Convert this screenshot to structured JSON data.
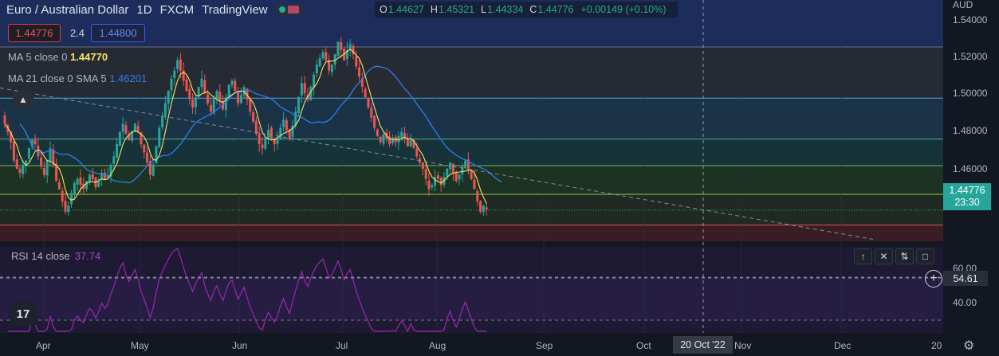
{
  "header": {
    "symbol": "Euro / Australian Dollar",
    "interval": "1D",
    "exchange": "FXCM",
    "source": "TradingView"
  },
  "ohlc": {
    "o_label": "O",
    "o": "1.44627",
    "h_label": "H",
    "h": "1.45321",
    "l_label": "L",
    "l": "1.44334",
    "c_label": "C",
    "c": "1.44776",
    "change": "+0.00149 (+0.10%)"
  },
  "trade": {
    "sell": "1.44776",
    "spread": "2.4",
    "buy": "1.44800"
  },
  "indicators": {
    "ma5_label": "MA 5 close 0",
    "ma5_value": "1.44770",
    "ma21_label": "MA 21 close 0 SMA 5",
    "ma21_value": "1.46201"
  },
  "rsi": {
    "label": "RSI 14 close",
    "value": "37.74",
    "current_tag": "54.61",
    "ticks": [
      "60.00",
      "40.00"
    ]
  },
  "axis": {
    "currency": "AUD",
    "ticks": [
      "1.54000",
      "1.52000",
      "1.50000",
      "1.48000",
      "1.46000"
    ],
    "current_price": "1.44776",
    "countdown": "23:30"
  },
  "xaxis": {
    "months": [
      "Apr",
      "May",
      "Jun",
      "Jul",
      "Aug",
      "Sep",
      "Oct",
      "Nov",
      "Dec",
      "20"
    ],
    "crosshair_date": "20 Oct '22"
  },
  "colors": {
    "up": "#26a69a",
    "down": "#ef5350",
    "ma5": "#f7e463",
    "ma21": "#2f7bf0",
    "rsi": "#9c27b0"
  },
  "chart_data": {
    "type": "candlestick",
    "y_range": [
      1.4325,
      1.5505
    ],
    "x_range": [
      "2022-03-21",
      "2022-12-20"
    ],
    "closes": [
      1.49,
      1.486,
      1.481,
      1.472,
      1.468,
      1.466,
      1.47,
      1.472,
      1.478,
      1.482,
      1.48,
      1.474,
      1.469,
      1.465,
      1.472,
      1.478,
      1.47,
      1.462,
      1.458,
      1.452,
      1.447,
      1.45,
      1.456,
      1.461,
      1.463,
      1.46,
      1.458,
      1.462,
      1.465,
      1.463,
      1.459,
      1.462,
      1.466,
      1.463,
      1.465,
      1.47,
      1.474,
      1.48,
      1.486,
      1.49,
      1.485,
      1.482,
      1.486,
      1.49,
      1.486,
      1.48,
      1.476,
      1.471,
      1.465,
      1.47,
      1.479,
      1.488,
      1.494,
      1.5,
      1.506,
      1.512,
      1.516,
      1.521,
      1.516,
      1.511,
      1.506,
      1.502,
      1.498,
      1.503,
      1.508,
      1.512,
      1.505,
      1.5,
      1.496,
      1.502,
      1.506,
      1.501,
      1.497,
      1.503,
      1.509,
      1.511,
      1.506,
      1.5,
      1.504,
      1.508,
      1.502,
      1.496,
      1.491,
      1.485,
      1.48,
      1.478,
      1.483,
      1.487,
      1.483,
      1.48,
      1.483,
      1.488,
      1.492,
      1.487,
      1.483,
      1.489,
      1.496,
      1.503,
      1.51,
      1.505,
      1.502,
      1.508,
      1.514,
      1.519,
      1.522,
      1.525,
      1.521,
      1.516,
      1.519,
      1.524,
      1.53,
      1.526,
      1.521,
      1.526,
      1.529,
      1.524,
      1.518,
      1.513,
      1.508,
      1.503,
      1.498,
      1.493,
      1.488,
      1.484,
      1.481,
      1.485,
      1.483,
      1.48,
      1.483,
      1.481,
      1.484,
      1.486,
      1.483,
      1.479,
      1.482,
      1.478,
      1.474,
      1.471,
      1.468,
      1.463,
      1.458,
      1.46,
      1.464,
      1.463,
      1.46,
      1.464,
      1.468,
      1.471,
      1.466,
      1.462,
      1.465,
      1.469,
      1.472,
      1.468,
      1.463,
      1.458,
      1.452,
      1.447,
      1.45,
      1.448
    ]
  }
}
